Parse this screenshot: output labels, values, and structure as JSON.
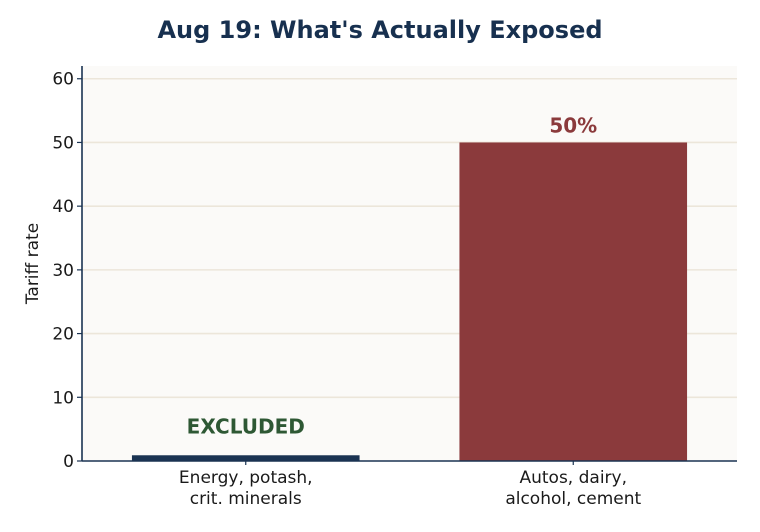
{
  "chart_data": {
    "type": "bar",
    "title": "Aug 19: What's Actually Exposed",
    "xlabel": "",
    "ylabel": "Tariff rate",
    "ylim": [
      0,
      62
    ],
    "yticks": [
      0,
      10,
      20,
      30,
      40,
      50,
      60
    ],
    "grid": true,
    "categories": [
      [
        "Energy, potash,",
        "crit. minerals"
      ],
      [
        "Autos, dairy,",
        "alcohol, cement"
      ]
    ],
    "values": [
      0.9,
      50
    ],
    "data_labels": [
      "EXCLUDED",
      "50%"
    ],
    "colors": {
      "bars": [
        "#1a3352",
        "#8b3a3c"
      ],
      "labels": [
        "#2e5834",
        "#8b3a3c"
      ],
      "title": "#17304f",
      "plot_background": "#fbfaf8",
      "grid": "#ece6da",
      "axis": "#1a3352"
    }
  }
}
